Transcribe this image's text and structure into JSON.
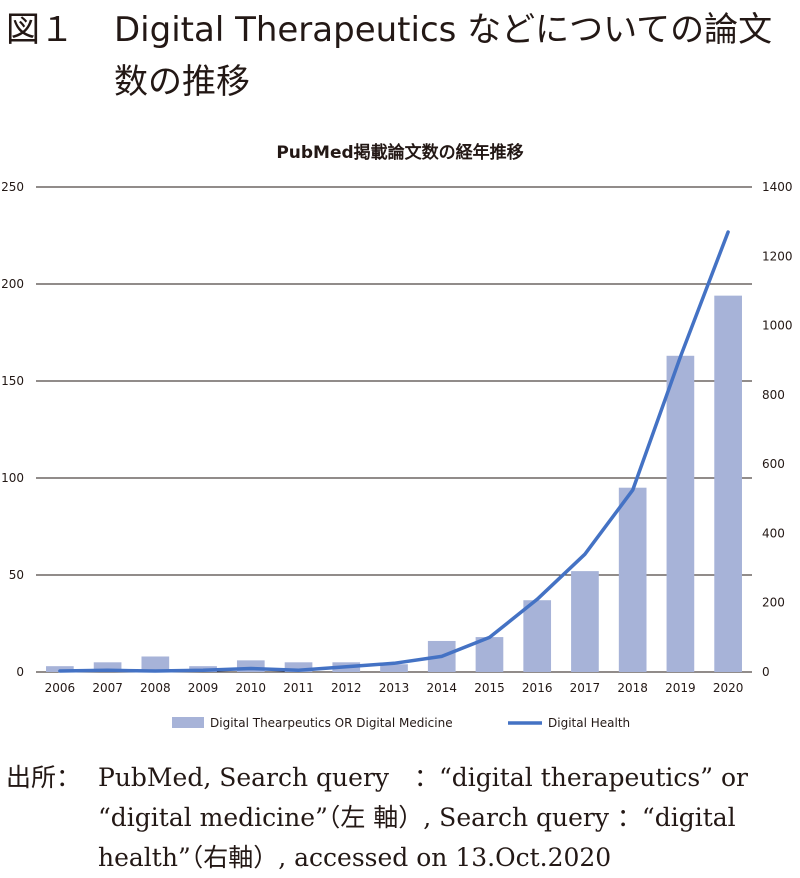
{
  "figure": {
    "label": "図１",
    "title": "Digital Therapeutics などについての論文数の推移"
  },
  "source": {
    "label": "出所：",
    "text": "PubMed, Search query　：“digital therapeutics” or “digital medicine”（左 軸）, Search query ：“digital health”（右軸）, accessed on 13.Oct.2020"
  },
  "chart_data": {
    "type": "bar",
    "title": "PubMed掲載論文数の経年推移",
    "categories": [
      "2006",
      "2007",
      "2008",
      "2009",
      "2010",
      "2011",
      "2012",
      "2013",
      "2014",
      "2015",
      "2016",
      "2017",
      "2018",
      "2019",
      "2020"
    ],
    "series": [
      {
        "name": "Digital Thearpeutics OR Digital Medicine",
        "type": "bar",
        "axis": "left",
        "values": [
          3,
          5,
          8,
          3,
          6,
          5,
          5,
          4,
          16,
          18,
          37,
          52,
          95,
          163,
          194
        ]
      },
      {
        "name": "Digital Health",
        "type": "line",
        "axis": "right",
        "values": [
          3,
          5,
          3,
          5,
          10,
          5,
          15,
          25,
          45,
          100,
          210,
          340,
          525,
          910,
          1270
        ]
      }
    ],
    "left_axis": {
      "min": 0,
      "max": 250,
      "ticks": [
        0,
        50,
        100,
        150,
        200,
        250
      ]
    },
    "right_axis": {
      "min": 0,
      "max": 1400,
      "ticks": [
        0,
        200,
        400,
        600,
        800,
        1000,
        1200,
        1400
      ]
    },
    "grid": true,
    "legend_position": "bottom",
    "colors": {
      "bar": "#a7b3d8",
      "line": "#4472c4",
      "grid": "#231815",
      "text": "#231815"
    }
  }
}
